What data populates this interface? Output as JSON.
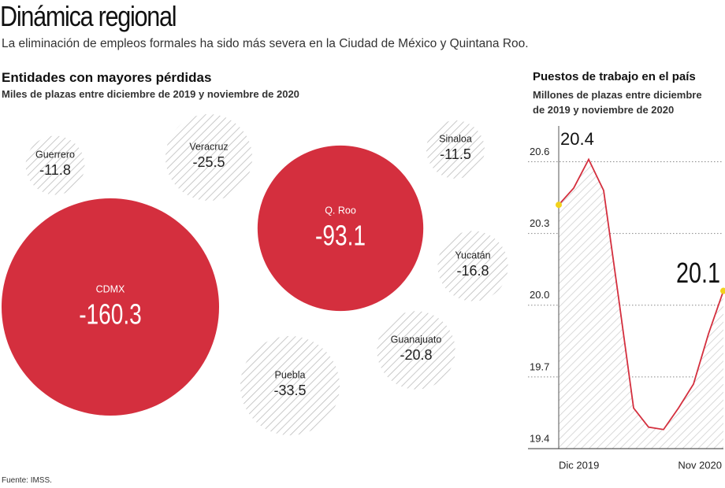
{
  "header": {
    "title": "Dinámica regional",
    "subtitle": "La eliminación de empleos formales ha sido más severa en la Ciudad de México y Quintana Roo."
  },
  "chart_data": [
    {
      "type": "bubble",
      "title": "Entidades con mayores pérdidas",
      "subtitle": "Miles de plazas entre diciembre de 2019 y noviembre de 2020",
      "categories": [
        "CDMX",
        "Q. Roo",
        "Guerrero",
        "Veracruz",
        "Sinaloa",
        "Yucatán",
        "Guanajuato",
        "Puebla"
      ],
      "values": [
        -160.3,
        -93.1,
        -11.8,
        -25.5,
        -11.5,
        -16.8,
        -20.8,
        -33.5
      ],
      "colors": [
        "#d42f3e",
        "#d42f3e",
        "#bdbdbd",
        "#bdbdbd",
        "#bdbdbd",
        "#bdbdbd",
        "#bdbdbd",
        "#bdbdbd"
      ],
      "styles": [
        "solid",
        "solid",
        "hatch",
        "hatch",
        "hatch",
        "hatch",
        "hatch",
        "hatch"
      ]
    },
    {
      "type": "line",
      "title": "Puestos de trabajo en el país",
      "subtitle": "Millones de plazas entre diciembre de 2019 y noviembre de 2020",
      "x": [
        "Dic 2019",
        null,
        null,
        null,
        null,
        null,
        null,
        null,
        null,
        null,
        null,
        "Nov 2020"
      ],
      "values": [
        20.42,
        20.49,
        20.61,
        20.48,
        20.03,
        19.57,
        19.49,
        19.48,
        19.57,
        19.67,
        19.88,
        20.06
      ],
      "value_labels": [
        "20.4",
        null,
        null,
        null,
        null,
        null,
        null,
        null,
        null,
        null,
        null,
        "20.1"
      ],
      "color": "#d42f3e",
      "marker_color": "#f2d21b",
      "ylim": [
        19.4,
        20.75
      ],
      "yticks": [
        19.4,
        19.7,
        {
          "value": 20,
          "label": "20.0"
        },
        20.3,
        20.6
      ],
      "grid": true
    }
  ],
  "footer": {
    "source": "Fuente: IMSS."
  }
}
